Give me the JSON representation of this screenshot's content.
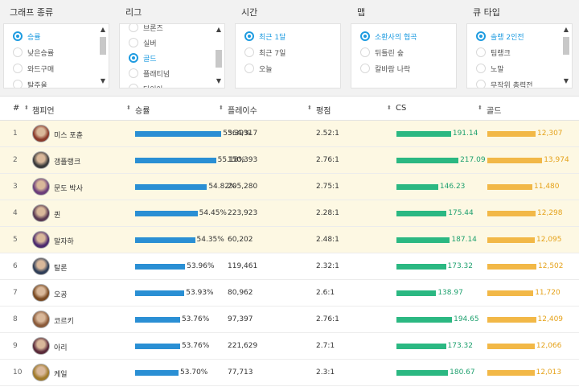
{
  "filters": [
    {
      "title": "그래프 종류",
      "options": [
        {
          "label": "승률",
          "selected": true
        },
        {
          "label": "낮은승률",
          "selected": false
        },
        {
          "label": "와드구매",
          "selected": false
        },
        {
          "label": "탈주율",
          "selected": false
        }
      ],
      "scrollbar": true
    },
    {
      "title": "리그",
      "options": [
        {
          "label": "브론즈",
          "selected": false
        },
        {
          "label": "실버",
          "selected": false
        },
        {
          "label": "골드",
          "selected": true
        },
        {
          "label": "플래티넘",
          "selected": false
        },
        {
          "label": "다이아",
          "selected": false
        }
      ],
      "scrollbar": true
    },
    {
      "title": "시간",
      "options": [
        {
          "label": "최근 1달",
          "selected": true
        },
        {
          "label": "최근 7일",
          "selected": false
        },
        {
          "label": "오늘",
          "selected": false
        }
      ],
      "scrollbar": false
    },
    {
      "title": "맵",
      "options": [
        {
          "label": "소환사의 협곡",
          "selected": true
        },
        {
          "label": "뒤틀린 숲",
          "selected": false
        },
        {
          "label": "칼바람 나락",
          "selected": false
        }
      ],
      "scrollbar": false
    },
    {
      "title": "큐 타입",
      "options": [
        {
          "label": "솔랭 2인전",
          "selected": true
        },
        {
          "label": "팀랭크",
          "selected": false
        },
        {
          "label": "노말",
          "selected": false
        },
        {
          "label": "무작위 총력전",
          "selected": false
        }
      ],
      "scrollbar": true
    }
  ],
  "table": {
    "headers": {
      "rank": "#",
      "champion": "챔피언",
      "winrate": "승률",
      "plays": "플레이수",
      "kda": "평점",
      "cs": "CS",
      "gold": "골드"
    },
    "rows": [
      {
        "rank": "1",
        "name": "미스 포츈",
        "winrate": "55.39%",
        "winrate_value": 55.39,
        "plays": "364,317",
        "kda": "2.52:1",
        "cs": "191.14",
        "cs_value": 191.14,
        "gold": "12,307",
        "gold_value": 12307,
        "highlight": true,
        "avatar_color": "#8a3a2a"
      },
      {
        "rank": "2",
        "name": "갱플랭크",
        "winrate": "55.18%",
        "winrate_value": 55.18,
        "plays": "150,393",
        "kda": "2.76:1",
        "cs": "217.09",
        "cs_value": 217.09,
        "gold": "13,974",
        "gold_value": 13974,
        "highlight": true,
        "avatar_color": "#3b3b3b"
      },
      {
        "rank": "3",
        "name": "문도 박사",
        "winrate": "54.82%",
        "winrate_value": 54.82,
        "plays": "205,280",
        "kda": "2.75:1",
        "cs": "146.23",
        "cs_value": 146.23,
        "gold": "11,480",
        "gold_value": 11480,
        "highlight": true,
        "avatar_color": "#6b3d7a"
      },
      {
        "rank": "4",
        "name": "퀸",
        "winrate": "54.45%",
        "winrate_value": 54.45,
        "plays": "223,923",
        "kda": "2.28:1",
        "cs": "175.44",
        "cs_value": 175.44,
        "gold": "12,298",
        "gold_value": 12298,
        "highlight": true,
        "avatar_color": "#5a3a52"
      },
      {
        "rank": "5",
        "name": "말자하",
        "winrate": "54.35%",
        "winrate_value": 54.35,
        "plays": "60,202",
        "kda": "2.48:1",
        "cs": "187.14",
        "cs_value": 187.14,
        "gold": "12,095",
        "gold_value": 12095,
        "highlight": true,
        "avatar_color": "#4c2a6e"
      },
      {
        "rank": "6",
        "name": "탈론",
        "winrate": "53.96%",
        "winrate_value": 53.96,
        "plays": "119,461",
        "kda": "2.32:1",
        "cs": "173.32",
        "cs_value": 173.32,
        "gold": "12,502",
        "gold_value": 12502,
        "highlight": false,
        "avatar_color": "#2f3e58"
      },
      {
        "rank": "7",
        "name": "오공",
        "winrate": "53.93%",
        "winrate_value": 53.93,
        "plays": "80,962",
        "kda": "2.6:1",
        "cs": "138.97",
        "cs_value": 138.97,
        "gold": "11,720",
        "gold_value": 11720,
        "highlight": false,
        "avatar_color": "#7a4a22"
      },
      {
        "rank": "8",
        "name": "코르키",
        "winrate": "53.76%",
        "winrate_value": 53.76,
        "plays": "97,397",
        "kda": "2.76:1",
        "cs": "194.65",
        "cs_value": 194.65,
        "gold": "12,409",
        "gold_value": 12409,
        "highlight": false,
        "avatar_color": "#8a5a3a"
      },
      {
        "rank": "9",
        "name": "아리",
        "winrate": "53.76%",
        "winrate_value": 53.76,
        "plays": "221,629",
        "kda": "2.7:1",
        "cs": "173.32",
        "cs_value": 173.32,
        "gold": "12,066",
        "gold_value": 12066,
        "highlight": false,
        "avatar_color": "#5a2a3a"
      },
      {
        "rank": "10",
        "name": "케일",
        "winrate": "53.70%",
        "winrate_value": 53.7,
        "plays": "77,713",
        "kda": "2.3:1",
        "cs": "180.67",
        "cs_value": 180.67,
        "gold": "12,013",
        "gold_value": 12013,
        "highlight": false,
        "avatar_color": "#a07a2a"
      }
    ]
  },
  "colors": {
    "accent": "#1e9be0",
    "winrate_bar": "#2a8fd4",
    "cs_bar": "#2bb882",
    "cs_text": "#1ea06e",
    "gold_bar": "#f2b847",
    "gold_text": "#e5a21a",
    "highlight_row": "#fdf8e3"
  },
  "icons": {
    "sort": "sort-arrows-icon",
    "scroll_up": "chevron-up-icon",
    "scroll_down": "chevron-down-icon",
    "radio": "radio-icon"
  }
}
